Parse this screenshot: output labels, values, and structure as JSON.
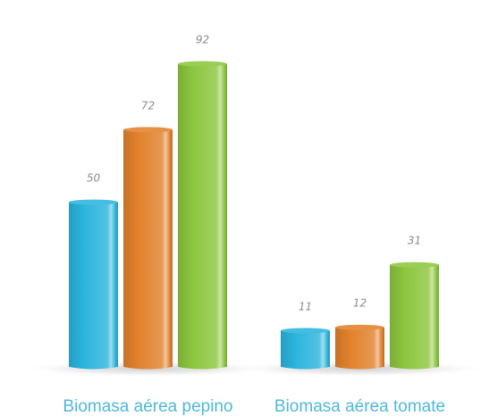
{
  "chart_data": {
    "type": "bar",
    "style": "3d-cylinder",
    "categories": [
      "Biomasa aérea pepino",
      "Biomasa aérea tomate"
    ],
    "series": [
      {
        "values": [
          50,
          11
        ],
        "color": "#2bb4dd"
      },
      {
        "values": [
          72,
          12
        ],
        "color": "#e1812c"
      },
      {
        "values": [
          92,
          31
        ],
        "color": "#8cc63e"
      }
    ],
    "data_labels": true,
    "ylim": [
      0,
      100
    ],
    "grid": false,
    "legend": "none",
    "title": "",
    "xlabel": "",
    "ylabel": ""
  }
}
